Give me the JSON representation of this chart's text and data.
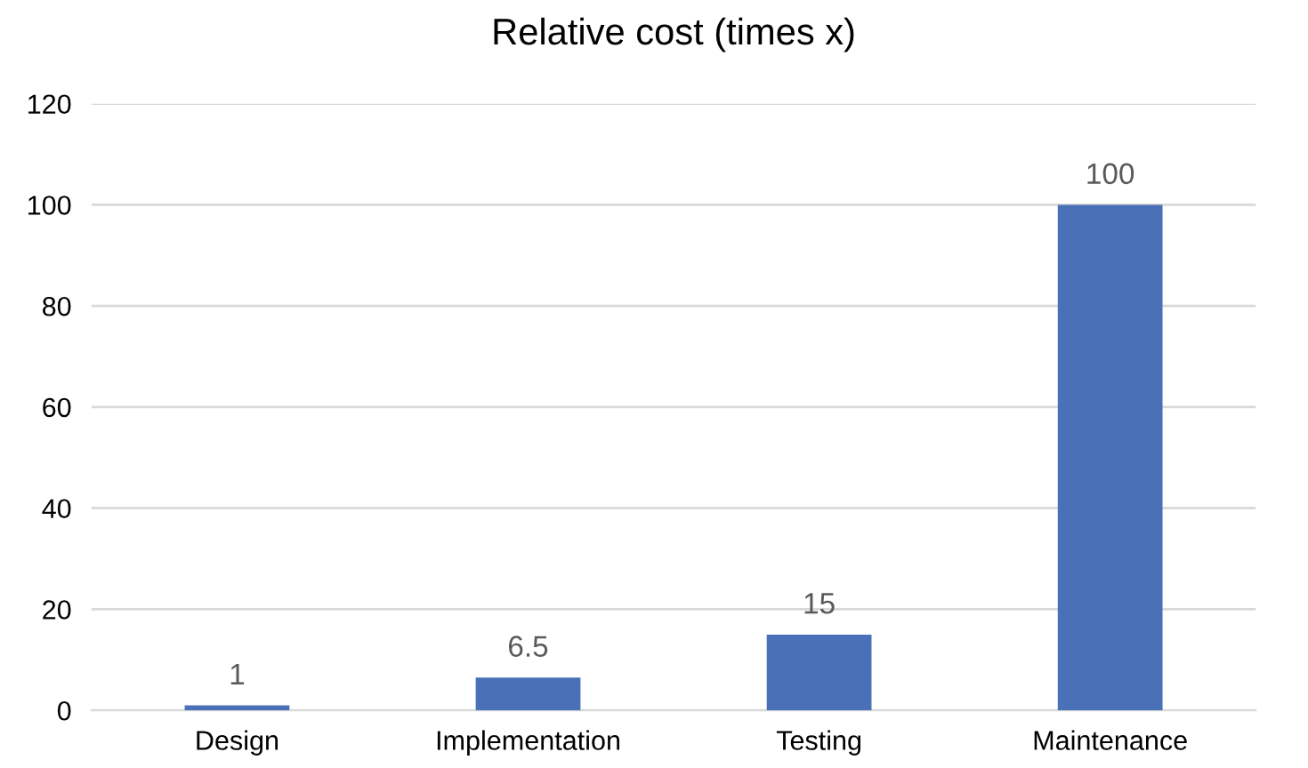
{
  "chart_data": {
    "type": "bar",
    "title": "Relative cost (times x)",
    "categories": [
      "Design",
      "Implementation",
      "Testing",
      "Maintenance"
    ],
    "values": [
      1,
      6.5,
      15,
      100
    ],
    "color": "#4a70b7",
    "ylim": [
      0,
      120
    ],
    "yticks": [
      0,
      20,
      40,
      60,
      80,
      100,
      120
    ],
    "grid": "y",
    "data_labels": true
  }
}
